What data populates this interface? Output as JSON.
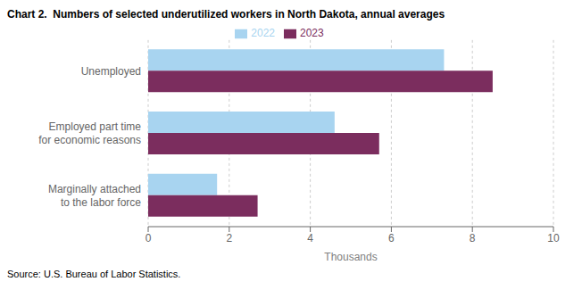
{
  "chart_data": {
    "type": "bar",
    "orientation": "horizontal",
    "title": "Chart 2.  Numbers of selected underutilized workers in North Dakota, annual averages",
    "categories": [
      "Unemployed",
      "Employed part time\nfor economic reasons",
      "Marginally attached\nto the labor force"
    ],
    "series": [
      {
        "name": "2022",
        "color": "#a8d4f0",
        "values": [
          7.3,
          4.6,
          1.7
        ]
      },
      {
        "name": "2023",
        "color": "#7b2d5e",
        "values": [
          8.5,
          5.7,
          2.7
        ]
      }
    ],
    "xlim": [
      0,
      10
    ],
    "xticks": [
      0,
      2,
      4,
      6,
      8,
      10
    ],
    "xlabel": "Thousands",
    "source": "Source: U.S. Bureau of Labor Statistics.",
    "grid": true,
    "legend": "top"
  }
}
